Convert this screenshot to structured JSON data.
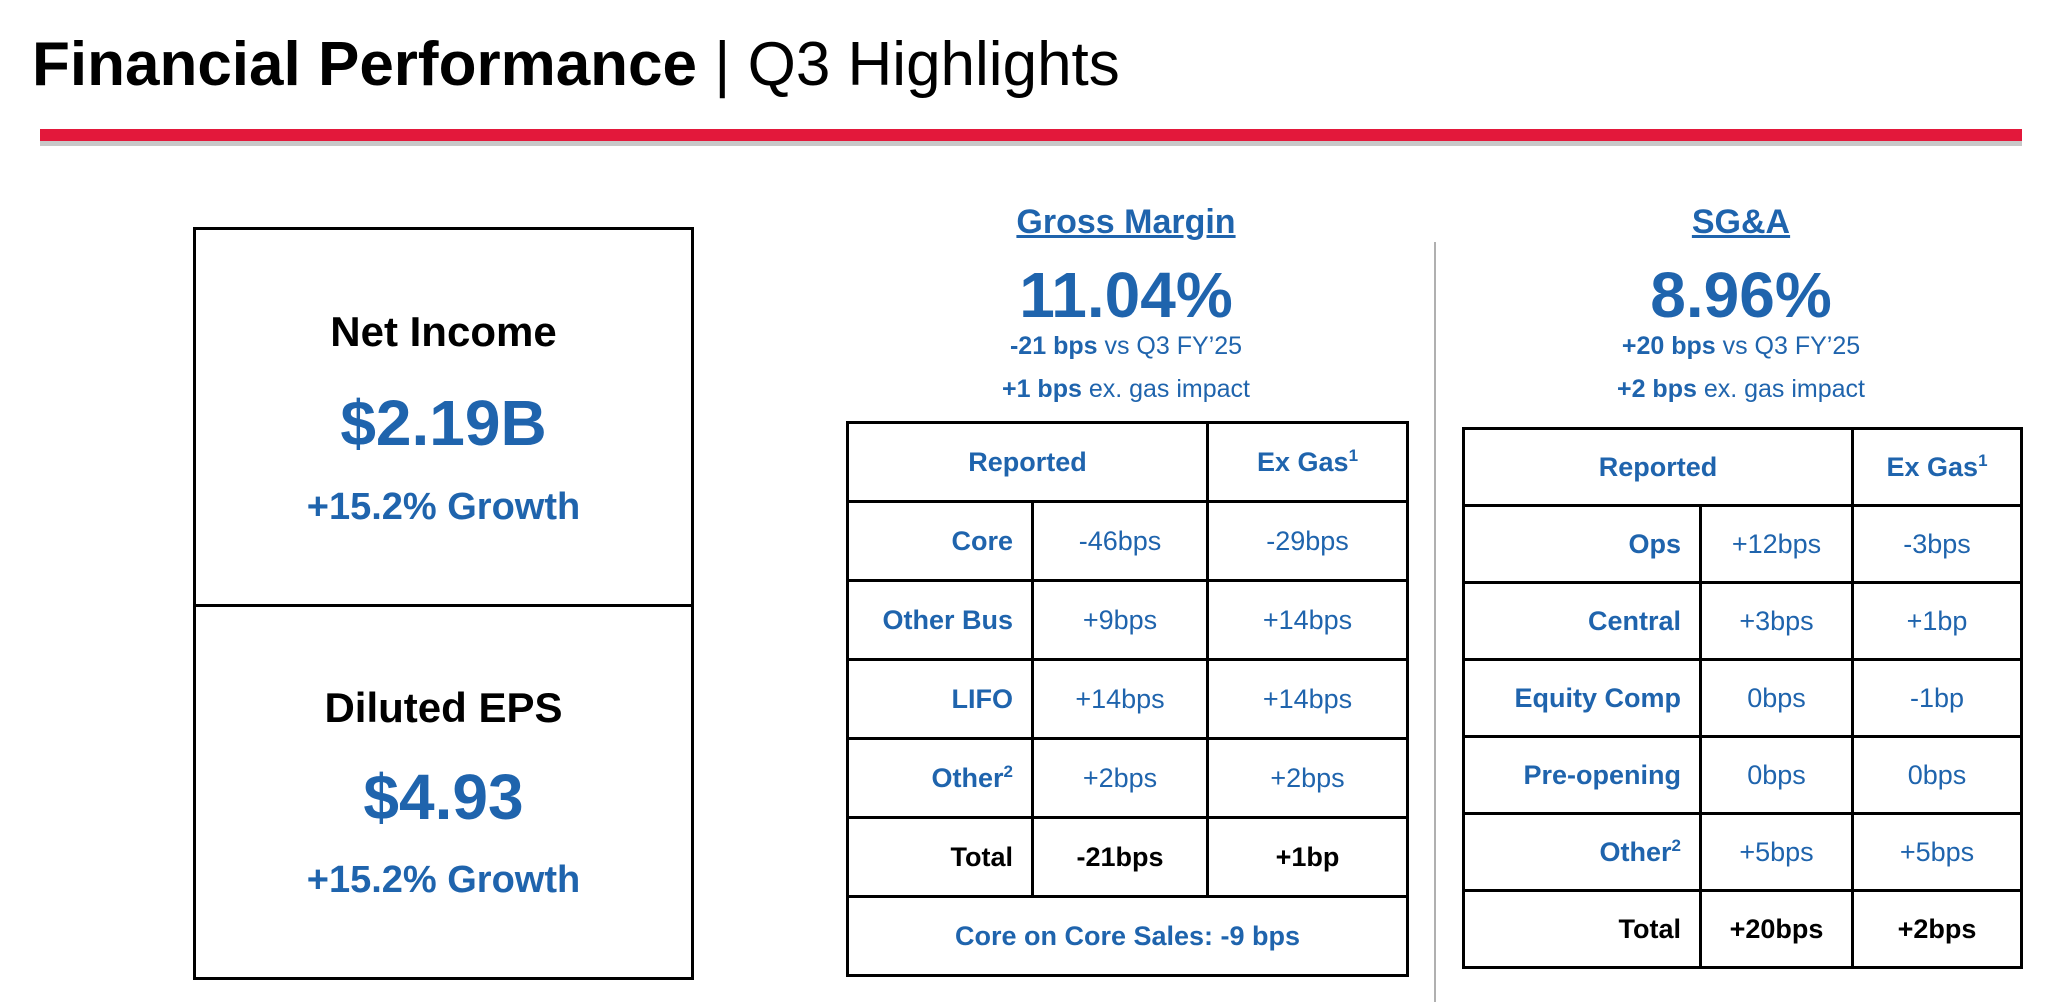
{
  "header": {
    "title_bold": "Financial Performance",
    "title_rest": " | Q3 Highlights"
  },
  "colors": {
    "accent_red": "#e3183b",
    "text_blue": "#1f64ad"
  },
  "net_income": {
    "label": "Net Income",
    "value": "$2.19B",
    "growth": "+15.2% Growth"
  },
  "diluted_eps": {
    "label": "Diluted EPS",
    "value": "$4.93",
    "growth": "+15.2% Growth"
  },
  "gross_margin": {
    "heading": "Gross Margin",
    "value": "11.04%",
    "change_bold": "-21 bps",
    "change_rest": " vs Q3 FY’25",
    "exgas_bold": "+1 bps",
    "exgas_rest": " ex. gas impact",
    "table": {
      "col_reported": "Reported",
      "col_exgas": "Ex Gas",
      "col_exgas_note": "1",
      "rows": [
        {
          "label": "Core",
          "note": "",
          "reported": "-46bps",
          "exgas": "-29bps"
        },
        {
          "label": "Other Bus",
          "note": "",
          "reported": "+9bps",
          "exgas": "+14bps"
        },
        {
          "label": "LIFO",
          "note": "",
          "reported": "+14bps",
          "exgas": "+14bps"
        },
        {
          "label": "Other",
          "note": "2",
          "reported": "+2bps",
          "exgas": "+2bps"
        }
      ],
      "total": {
        "label": "Total",
        "reported": "-21bps",
        "exgas": "+1bp"
      },
      "footer": "Core on Core Sales: -9 bps"
    }
  },
  "sga": {
    "heading": "SG&A",
    "value": "8.96%",
    "change_bold": "+20 bps",
    "change_rest": " vs Q3 FY’25",
    "exgas_bold": "+2 bps",
    "exgas_rest": " ex. gas impact",
    "table": {
      "col_reported": "Reported",
      "col_exgas": "Ex Gas",
      "col_exgas_note": "1",
      "rows": [
        {
          "label": "Ops",
          "note": "",
          "reported": "+12bps",
          "exgas": "-3bps"
        },
        {
          "label": "Central",
          "note": "",
          "reported": "+3bps",
          "exgas": "+1bp"
        },
        {
          "label": "Equity Comp",
          "note": "",
          "reported": "0bps",
          "exgas": "-1bp"
        },
        {
          "label": "Pre-opening",
          "note": "",
          "reported": "0bps",
          "exgas": "0bps"
        },
        {
          "label": "Other",
          "note": "2",
          "reported": "+5bps",
          "exgas": "+5bps"
        }
      ],
      "total": {
        "label": "Total",
        "reported": "+20bps",
        "exgas": "+2bps"
      }
    }
  }
}
